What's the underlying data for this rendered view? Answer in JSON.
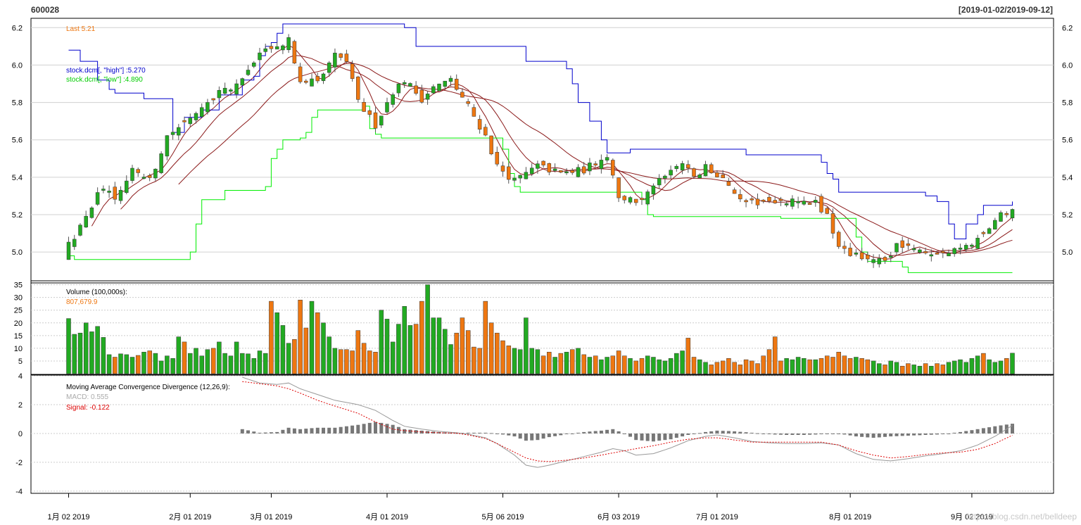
{
  "chart_data": {
    "type": "candlestick",
    "symbol": "600028",
    "date_range": "[2019-01-02/2019-09-12]",
    "colors": {
      "up": "#22aa22",
      "down": "#ee7711",
      "high_line": "#0000cc",
      "low_line": "#00ee00",
      "ma": "#8b1a1a",
      "macd": "#999999",
      "signal": "#dd0000",
      "hist": "#777777"
    },
    "price_panel": {
      "last_label": "Last 5.21",
      "high_legend": "stock.dcm[, \"high\"] :5.270",
      "low_legend": "stock.dcm[, \"low\"] :4.890",
      "yticks": [
        "5.0",
        "5.2",
        "5.4",
        "5.6",
        "5.8",
        "6.0",
        "6.2"
      ],
      "ylim": [
        4.85,
        6.25
      ]
    },
    "volume_panel": {
      "title": "Volume (100,000s):",
      "value": "807,679.9",
      "yticks": [
        "5",
        "10",
        "15",
        "20",
        "25",
        "30",
        "35"
      ],
      "ylim": [
        0,
        36
      ]
    },
    "macd_panel": {
      "title": "Moving Average Convergence Divergence (12,26,9):",
      "macd_label": "MACD: 0.555",
      "signal_label": "Signal: -0.122",
      "yticks": [
        "-4",
        "-2",
        "0",
        "2",
        "4"
      ],
      "ylim": [
        -4.2,
        4.0
      ]
    },
    "xtick_labels": [
      "1月 02 2019",
      "2月 01 2019",
      "3月 01 2019",
      "4月 01 2019",
      "5月 06 2019",
      "6月 03 2019",
      "7月 01 2019",
      "8月 01 2019",
      "9月 02 2019"
    ],
    "xtick_index": [
      0,
      21,
      35,
      55,
      75,
      95,
      112,
      135,
      156
    ],
    "close_anchors": [
      [
        0,
        5.04
      ],
      [
        3,
        5.18
      ],
      [
        5,
        5.33
      ],
      [
        8,
        5.3
      ],
      [
        11,
        5.44
      ],
      [
        14,
        5.38
      ],
      [
        17,
        5.62
      ],
      [
        21,
        5.72
      ],
      [
        25,
        5.83
      ],
      [
        30,
        5.92
      ],
      [
        33,
        6.06
      ],
      [
        36,
        6.09
      ],
      [
        38,
        6.13
      ],
      [
        40,
        5.92
      ],
      [
        43,
        5.9
      ],
      [
        46,
        6.05
      ],
      [
        48,
        6.02
      ],
      [
        50,
        5.8
      ],
      [
        53,
        5.68
      ],
      [
        56,
        5.86
      ],
      [
        58,
        5.92
      ],
      [
        61,
        5.82
      ],
      [
        63,
        5.88
      ],
      [
        66,
        5.92
      ],
      [
        69,
        5.78
      ],
      [
        72,
        5.62
      ],
      [
        74,
        5.46
      ],
      [
        77,
        5.38
      ],
      [
        81,
        5.46
      ],
      [
        85,
        5.42
      ],
      [
        89,
        5.44
      ],
      [
        93,
        5.52
      ],
      [
        95,
        5.3
      ],
      [
        98,
        5.26
      ],
      [
        101,
        5.36
      ],
      [
        104,
        5.42
      ],
      [
        106,
        5.46
      ],
      [
        108,
        5.41
      ],
      [
        110,
        5.45
      ],
      [
        113,
        5.4
      ],
      [
        115,
        5.32
      ],
      [
        118,
        5.26
      ],
      [
        122,
        5.28
      ],
      [
        126,
        5.27
      ],
      [
        129,
        5.26
      ],
      [
        131,
        5.2
      ],
      [
        133,
        5.02
      ],
      [
        136,
        4.98
      ],
      [
        139,
        4.97
      ],
      [
        141,
        4.94
      ],
      [
        143,
        5.03
      ],
      [
        146,
        5.01
      ],
      [
        149,
        4.98
      ],
      [
        152,
        4.99
      ],
      [
        155,
        5.02
      ],
      [
        158,
        5.11
      ],
      [
        161,
        5.2
      ],
      [
        163,
        5.21
      ]
    ],
    "volume_anchors": [
      [
        0,
        21.7
      ],
      [
        1,
        15.5
      ],
      [
        2,
        16
      ],
      [
        3,
        20
      ],
      [
        4,
        16.5
      ],
      [
        5,
        18.6
      ],
      [
        6,
        14.3
      ],
      [
        7,
        7.5
      ],
      [
        8,
        6.5
      ],
      [
        9,
        7.8
      ],
      [
        10,
        7.5
      ],
      [
        11,
        6.5
      ],
      [
        12,
        7.2
      ],
      [
        13,
        8.5
      ],
      [
        14,
        9
      ],
      [
        15,
        8
      ],
      [
        16,
        5
      ],
      [
        17,
        7
      ],
      [
        18,
        6
      ],
      [
        19,
        14.5
      ],
      [
        20,
        12.5
      ],
      [
        21,
        8
      ],
      [
        22,
        10
      ],
      [
        23,
        7
      ],
      [
        24,
        9.5
      ],
      [
        25,
        10
      ],
      [
        26,
        12.5
      ],
      [
        27,
        8
      ],
      [
        28,
        7
      ],
      [
        29,
        12.5
      ],
      [
        30,
        8
      ],
      [
        31,
        7.8
      ],
      [
        32,
        6
      ],
      [
        33,
        9
      ],
      [
        34,
        8
      ],
      [
        35,
        28.5
      ],
      [
        36,
        24
      ],
      [
        37,
        19
      ],
      [
        38,
        12
      ],
      [
        39,
        13.5
      ],
      [
        40,
        29
      ],
      [
        41,
        18
      ],
      [
        42,
        28.5
      ],
      [
        43,
        24
      ],
      [
        44,
        20
      ],
      [
        45,
        14.5
      ],
      [
        46,
        10
      ],
      [
        47,
        9.5
      ],
      [
        48,
        9.5
      ],
      [
        49,
        9
      ],
      [
        50,
        17
      ],
      [
        51,
        12
      ],
      [
        52,
        9
      ],
      [
        53,
        8.5
      ],
      [
        54,
        25
      ],
      [
        55,
        21.5
      ],
      [
        56,
        12.5
      ],
      [
        57,
        19.5
      ],
      [
        58,
        26.5
      ],
      [
        59,
        19
      ],
      [
        60,
        19.5
      ],
      [
        61,
        28.5
      ],
      [
        62,
        35
      ],
      [
        63,
        22
      ],
      [
        64,
        22
      ],
      [
        65,
        17.5
      ],
      [
        66,
        11.5
      ],
      [
        67,
        16
      ],
      [
        68,
        22
      ],
      [
        69,
        17
      ],
      [
        70,
        10.5
      ],
      [
        71,
        10
      ],
      [
        72,
        28.5
      ],
      [
        73,
        20
      ],
      [
        74,
        16
      ],
      [
        75,
        13
      ],
      [
        76,
        11
      ],
      [
        77,
        10
      ],
      [
        78,
        9.5
      ],
      [
        79,
        22
      ],
      [
        80,
        10
      ],
      [
        81,
        9.5
      ],
      [
        82,
        7
      ],
      [
        83,
        8.5
      ],
      [
        84,
        6.5
      ],
      [
        85,
        8
      ],
      [
        86,
        8.5
      ],
      [
        87,
        9.5
      ],
      [
        88,
        10
      ],
      [
        89,
        7.5
      ],
      [
        90,
        6.5
      ],
      [
        91,
        7
      ],
      [
        92,
        5.5
      ],
      [
        93,
        6.5
      ],
      [
        94,
        7
      ],
      [
        95,
        9
      ],
      [
        96,
        7
      ],
      [
        97,
        6
      ],
      [
        98,
        5
      ],
      [
        99,
        6
      ],
      [
        100,
        7
      ],
      [
        101,
        6.5
      ],
      [
        102,
        5.5
      ],
      [
        103,
        5
      ],
      [
        104,
        6
      ],
      [
        105,
        8
      ],
      [
        106,
        9
      ],
      [
        107,
        14
      ],
      [
        108,
        6.5
      ],
      [
        109,
        5.5
      ],
      [
        110,
        4.5
      ],
      [
        111,
        3.5
      ],
      [
        112,
        4.5
      ],
      [
        113,
        5
      ],
      [
        114,
        6
      ],
      [
        115,
        4.5
      ],
      [
        116,
        3.5
      ],
      [
        117,
        5.5
      ],
      [
        118,
        5
      ],
      [
        119,
        4
      ],
      [
        120,
        7
      ],
      [
        121,
        9.5
      ],
      [
        122,
        14.5
      ],
      [
        123,
        5
      ],
      [
        124,
        6
      ],
      [
        125,
        5.5
      ],
      [
        126,
        6.5
      ],
      [
        127,
        6
      ],
      [
        128,
        5.5
      ],
      [
        129,
        5.5
      ],
      [
        130,
        6
      ],
      [
        131,
        7
      ],
      [
        132,
        6.5
      ],
      [
        133,
        8.5
      ],
      [
        134,
        7
      ],
      [
        135,
        6
      ],
      [
        136,
        6.5
      ],
      [
        137,
        6
      ],
      [
        138,
        5.5
      ],
      [
        139,
        5
      ],
      [
        140,
        4
      ],
      [
        141,
        3.5
      ],
      [
        142,
        5
      ],
      [
        143,
        4.5
      ],
      [
        144,
        3
      ],
      [
        145,
        4
      ],
      [
        146,
        3.5
      ],
      [
        147,
        3
      ],
      [
        148,
        4
      ],
      [
        149,
        3
      ],
      [
        150,
        4
      ],
      [
        151,
        3.5
      ],
      [
        152,
        4.5
      ],
      [
        153,
        5
      ],
      [
        154,
        5.5
      ],
      [
        155,
        4.5
      ],
      [
        156,
        6
      ],
      [
        157,
        7
      ],
      [
        158,
        8
      ],
      [
        159,
        5.5
      ],
      [
        160,
        4.5
      ],
      [
        161,
        5
      ],
      [
        162,
        6
      ],
      [
        163,
        8.1
      ]
    ],
    "macd_anchors": [
      [
        30,
        3.9
      ],
      [
        33,
        3.5
      ],
      [
        36,
        3.4
      ],
      [
        38,
        3.5
      ],
      [
        40,
        3.1
      ],
      [
        43,
        2.7
      ],
      [
        46,
        2.3
      ],
      [
        50,
        2.0
      ],
      [
        53,
        1.6
      ],
      [
        56,
        0.9
      ],
      [
        58,
        0.5
      ],
      [
        61,
        0.3
      ],
      [
        64,
        0.15
      ],
      [
        67,
        0.05
      ],
      [
        69,
        -0.05
      ],
      [
        72,
        -0.3
      ],
      [
        74,
        -0.7
      ],
      [
        77,
        -1.5
      ],
      [
        79,
        -2.2
      ],
      [
        81,
        -2.35
      ],
      [
        83,
        -2.2
      ],
      [
        86,
        -1.9
      ],
      [
        89,
        -1.6
      ],
      [
        92,
        -1.3
      ],
      [
        94,
        -1.05
      ],
      [
        96,
        -1.2
      ],
      [
        98,
        -1.5
      ],
      [
        101,
        -1.4
      ],
      [
        104,
        -1.0
      ],
      [
        107,
        -0.5
      ],
      [
        110,
        -0.2
      ],
      [
        112,
        -0.1
      ],
      [
        115,
        -0.3
      ],
      [
        118,
        -0.55
      ],
      [
        121,
        -0.65
      ],
      [
        124,
        -0.7
      ],
      [
        127,
        -0.7
      ],
      [
        130,
        -0.65
      ],
      [
        133,
        -0.8
      ],
      [
        136,
        -1.4
      ],
      [
        139,
        -1.8
      ],
      [
        142,
        -1.9
      ],
      [
        145,
        -1.75
      ],
      [
        148,
        -1.55
      ],
      [
        151,
        -1.4
      ],
      [
        154,
        -1.2
      ],
      [
        157,
        -0.8
      ],
      [
        160,
        -0.2
      ],
      [
        163,
        0.555
      ]
    ],
    "signal_anchors": [
      [
        30,
        3.6
      ],
      [
        33,
        3.45
      ],
      [
        36,
        3.3
      ],
      [
        38,
        3.1
      ],
      [
        40,
        2.8
      ],
      [
        43,
        2.3
      ],
      [
        46,
        1.9
      ],
      [
        50,
        1.4
      ],
      [
        53,
        0.8
      ],
      [
        56,
        0.3
      ],
      [
        58,
        0.2
      ],
      [
        61,
        0.1
      ],
      [
        64,
        0.05
      ],
      [
        67,
        0.02
      ],
      [
        69,
        -0.1
      ],
      [
        72,
        -0.35
      ],
      [
        74,
        -0.7
      ],
      [
        77,
        -1.3
      ],
      [
        79,
        -1.7
      ],
      [
        81,
        -1.9
      ],
      [
        83,
        -1.95
      ],
      [
        86,
        -1.85
      ],
      [
        89,
        -1.7
      ],
      [
        92,
        -1.5
      ],
      [
        94,
        -1.35
      ],
      [
        96,
        -1.2
      ],
      [
        98,
        -1.05
      ],
      [
        101,
        -0.85
      ],
      [
        104,
        -0.6
      ],
      [
        107,
        -0.4
      ],
      [
        110,
        -0.3
      ],
      [
        112,
        -0.3
      ],
      [
        115,
        -0.45
      ],
      [
        118,
        -0.6
      ],
      [
        121,
        -0.6
      ],
      [
        124,
        -0.6
      ],
      [
        127,
        -0.6
      ],
      [
        130,
        -0.6
      ],
      [
        133,
        -0.8
      ],
      [
        136,
        -1.2
      ],
      [
        139,
        -1.5
      ],
      [
        142,
        -1.7
      ],
      [
        145,
        -1.6
      ],
      [
        148,
        -1.45
      ],
      [
        151,
        -1.35
      ],
      [
        154,
        -1.3
      ],
      [
        157,
        -1.1
      ],
      [
        160,
        -0.7
      ],
      [
        163,
        -0.122
      ]
    ],
    "high_line_steps": [
      [
        0,
        6.08
      ],
      [
        1,
        6.08
      ],
      [
        2,
        6.02
      ],
      [
        4,
        6.02
      ],
      [
        5,
        5.92
      ],
      [
        7,
        5.87
      ],
      [
        8,
        5.85
      ],
      [
        12,
        5.85
      ],
      [
        13,
        5.82
      ],
      [
        17,
        5.82
      ],
      [
        18,
        5.64
      ],
      [
        19,
        5.64
      ],
      [
        20,
        5.72
      ],
      [
        22,
        5.72
      ],
      [
        23,
        5.76
      ],
      [
        25,
        5.76
      ],
      [
        26,
        5.84
      ],
      [
        29,
        5.84
      ],
      [
        30,
        5.92
      ],
      [
        32,
        5.94
      ],
      [
        33,
        6.05
      ],
      [
        34,
        6.1
      ],
      [
        35,
        6.12
      ],
      [
        36,
        6.17
      ],
      [
        37,
        6.22
      ],
      [
        57,
        6.22
      ],
      [
        58,
        6.2
      ],
      [
        60,
        6.1
      ],
      [
        78,
        6.1
      ],
      [
        79,
        6.02
      ],
      [
        85,
        6.02
      ],
      [
        86,
        5.98
      ],
      [
        87,
        5.9
      ],
      [
        88,
        5.8
      ],
      [
        90,
        5.7
      ],
      [
        92,
        5.6
      ],
      [
        93,
        5.53
      ],
      [
        96,
        5.53
      ],
      [
        97,
        5.55
      ],
      [
        116,
        5.55
      ],
      [
        117,
        5.52
      ],
      [
        128,
        5.52
      ],
      [
        130,
        5.48
      ],
      [
        131,
        5.42
      ],
      [
        132,
        5.39
      ],
      [
        133,
        5.32
      ],
      [
        147,
        5.32
      ],
      [
        148,
        5.3
      ],
      [
        150,
        5.27
      ],
      [
        152,
        5.15
      ],
      [
        153,
        5.07
      ],
      [
        154,
        5.07
      ],
      [
        155,
        5.15
      ],
      [
        157,
        5.2
      ],
      [
        158,
        5.25
      ],
      [
        163,
        5.27
      ]
    ],
    "low_line_steps": [
      [
        0,
        4.98
      ],
      [
        1,
        4.96
      ],
      [
        20,
        4.96
      ],
      [
        21,
        5.0
      ],
      [
        22,
        5.15
      ],
      [
        23,
        5.28
      ],
      [
        26,
        5.28
      ],
      [
        27,
        5.33
      ],
      [
        33,
        5.33
      ],
      [
        34,
        5.35
      ],
      [
        35,
        5.5
      ],
      [
        36,
        5.55
      ],
      [
        37,
        5.6
      ],
      [
        40,
        5.61
      ],
      [
        41,
        5.64
      ],
      [
        42,
        5.72
      ],
      [
        43,
        5.76
      ],
      [
        50,
        5.76
      ],
      [
        51,
        5.78
      ],
      [
        52,
        5.66
      ],
      [
        53,
        5.63
      ],
      [
        54,
        5.61
      ],
      [
        74,
        5.61
      ],
      [
        75,
        5.55
      ],
      [
        76,
        5.42
      ],
      [
        77,
        5.35
      ],
      [
        78,
        5.32
      ],
      [
        98,
        5.32
      ],
      [
        99,
        5.28
      ],
      [
        100,
        5.2
      ],
      [
        101,
        5.19
      ],
      [
        122,
        5.19
      ],
      [
        123,
        5.18
      ],
      [
        135,
        5.18
      ],
      [
        136,
        5.08
      ],
      [
        137,
        5.0
      ],
      [
        138,
        4.95
      ],
      [
        143,
        4.95
      ],
      [
        144,
        4.92
      ],
      [
        145,
        4.89
      ],
      [
        163,
        4.89
      ]
    ],
    "watermark": "https://blog.csdn.net/belldeep"
  }
}
